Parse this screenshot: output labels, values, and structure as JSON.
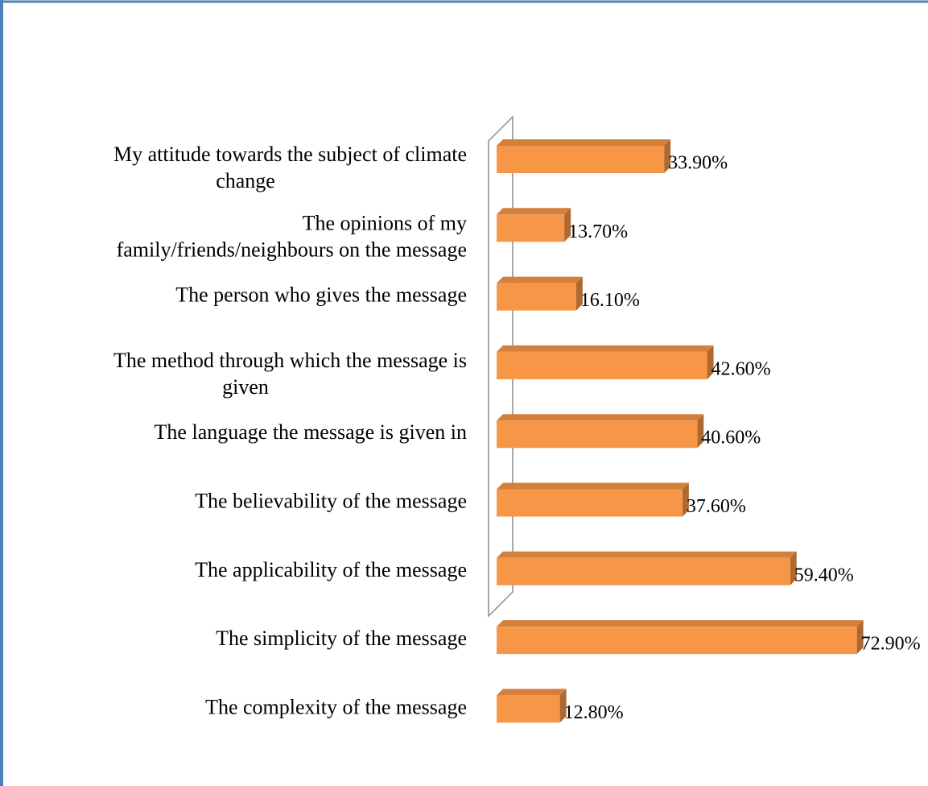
{
  "chart_data": {
    "type": "bar3d_horizontal",
    "categories": [
      "My attitude towards the subject of climate\nchange",
      "The opinions of my\nfamily/friends/neighbours on the message",
      "The person who gives the message",
      "The method through which the message is\ngiven",
      "The language the message is given in",
      "The believability of the message",
      "The applicability of the message",
      "The simplicity of the message",
      "The complexity of the message"
    ],
    "values": [
      33.9,
      13.7,
      16.1,
      42.6,
      40.6,
      37.6,
      59.4,
      72.9,
      12.8
    ],
    "value_labels": [
      "33.90%",
      "13.70%",
      "16.10%",
      "42.60%",
      "40.60%",
      "37.60%",
      "59.40%",
      "72.90%",
      "12.80%"
    ],
    "color": "#f79646"
  }
}
